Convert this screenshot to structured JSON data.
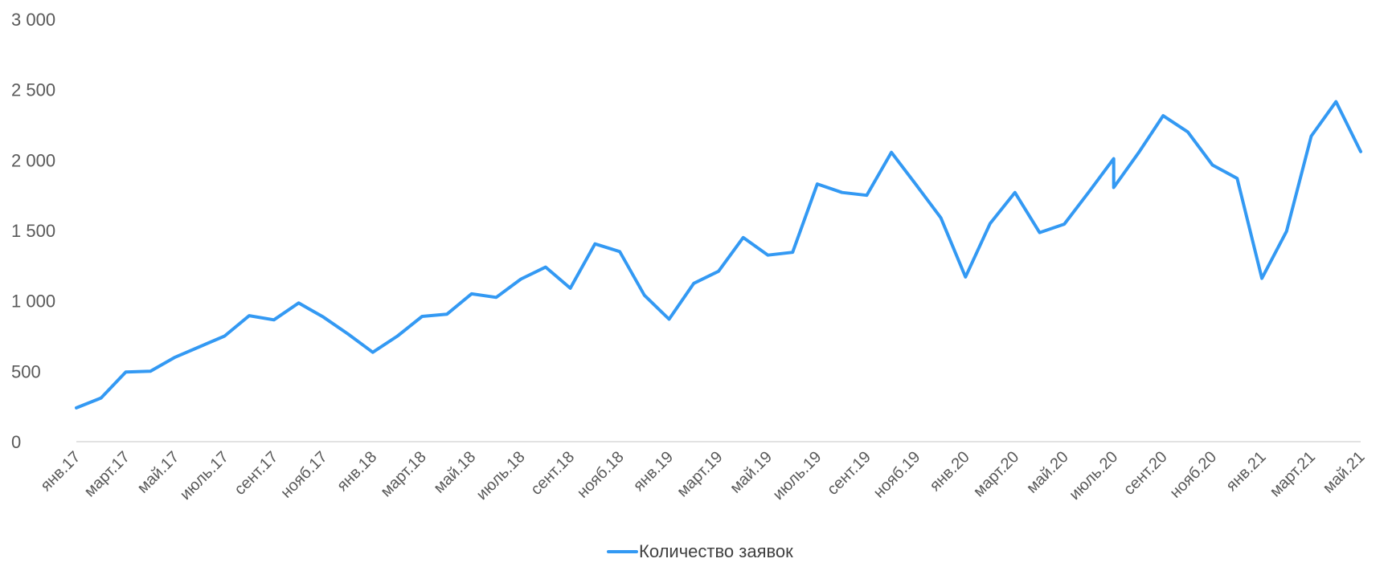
{
  "chart_data": {
    "type": "line",
    "title": "",
    "xlabel": "",
    "ylabel": "",
    "ylim": [
      0,
      3000
    ],
    "yticks": [
      "0",
      "500",
      "1 000",
      "1 500",
      "2 000",
      "2 500",
      "3 000"
    ],
    "ytick_values": [
      0,
      500,
      1000,
      1500,
      2000,
      2500,
      3000
    ],
    "grid": false,
    "legend_position": "bottom",
    "x_labels": [
      "янв.17",
      "март.17",
      "май.17",
      "июль.17",
      "сент.17",
      "нояб.17",
      "янв.18",
      "март.18",
      "май.18",
      "июль.18",
      "сент.18",
      "нояб.18",
      "янв.19",
      "март.19",
      "май.19",
      "июль.19",
      "сент.19",
      "нояб.19",
      "янв.20",
      "март.20",
      "май.20",
      "июль.20",
      "сент.20",
      "нояб.20",
      "янв.21",
      "март.21",
      "май.21"
    ],
    "x_label_indices": [
      0,
      2,
      4,
      6,
      8,
      10,
      12,
      14,
      16,
      18,
      20,
      22,
      24,
      26,
      28,
      30,
      32,
      34,
      36,
      38,
      40,
      42,
      44,
      46,
      48,
      50,
      52
    ],
    "x_index_max": 52,
    "series": [
      {
        "name": "Количество заявок",
        "color": "#3399f3",
        "points": [
          [
            0,
            240
          ],
          [
            1,
            310
          ],
          [
            2,
            495
          ],
          [
            3,
            500
          ],
          [
            4,
            600
          ],
          [
            5,
            675
          ],
          [
            6,
            750
          ],
          [
            7,
            895
          ],
          [
            8,
            865
          ],
          [
            9,
            985
          ],
          [
            10,
            885
          ],
          [
            11,
            765
          ],
          [
            12,
            635
          ],
          [
            13,
            750
          ],
          [
            14,
            890
          ],
          [
            15,
            905
          ],
          [
            16,
            1050
          ],
          [
            17,
            1025
          ],
          [
            18,
            1155
          ],
          [
            19,
            1240
          ],
          [
            20,
            1090
          ],
          [
            21,
            1405
          ],
          [
            22,
            1350
          ],
          [
            23,
            1040
          ],
          [
            24,
            870
          ],
          [
            25,
            1125
          ],
          [
            26,
            1210
          ],
          [
            27,
            1450
          ],
          [
            28,
            1325
          ],
          [
            29,
            1345
          ],
          [
            30,
            1830
          ],
          [
            31,
            1770
          ],
          [
            32,
            1750
          ],
          [
            33,
            2055
          ],
          [
            34,
            1825
          ],
          [
            35,
            1590
          ],
          [
            36,
            1170
          ],
          [
            37,
            1550
          ],
          [
            38,
            1770
          ],
          [
            39,
            1485
          ],
          [
            40,
            1545
          ],
          [
            41,
            1775
          ],
          [
            42,
            2010
          ],
          [
            42,
            1805
          ],
          [
            43,
            2050
          ],
          [
            44,
            2315
          ],
          [
            45,
            2200
          ],
          [
            46,
            1965
          ],
          [
            47,
            1870
          ],
          [
            48,
            1160
          ],
          [
            49,
            1495
          ],
          [
            50,
            2170
          ],
          [
            51,
            2415
          ],
          [
            52,
            2060
          ]
        ]
      }
    ]
  }
}
